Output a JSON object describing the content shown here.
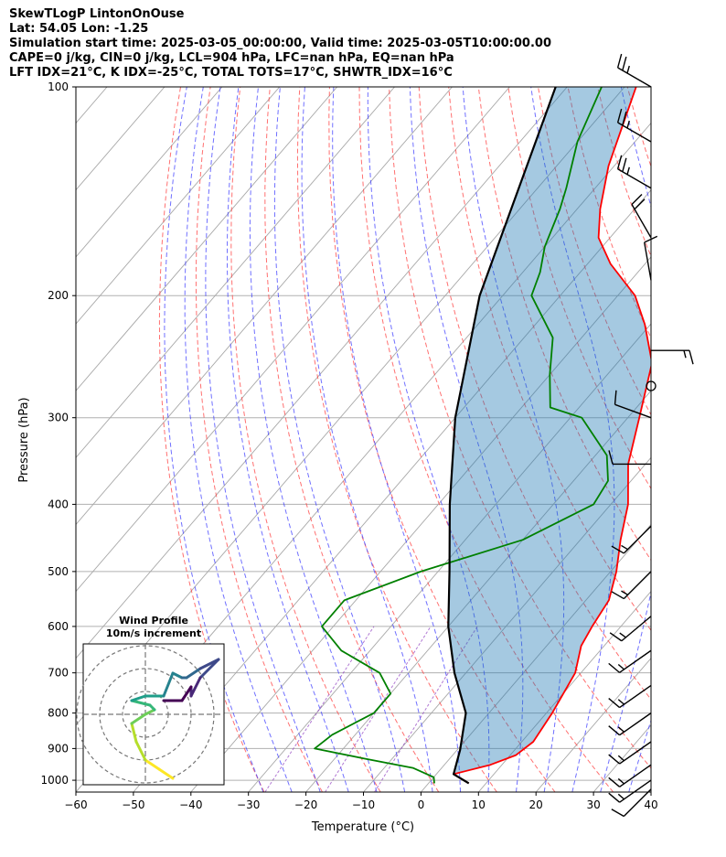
{
  "header": {
    "line1": "SkewTLogP LintonOnOuse",
    "line2": "Lat: 54.05   Lon: -1.25",
    "line3": "Simulation start time: 2025-03-05_00:00:00, Valid time: 2025-03-05T10:00:00.00",
    "line4": "CAPE=0 j/kg, CIN=0 j/kg, LCL=904 hPa, LFC=nan hPa, EQ=nan hPa",
    "line5": "LFT IDX=21°C, K IDX=-25°C, TOTAL TOTS=17°C, SHWTR_IDX=16°C"
  },
  "chart_data": {
    "type": "line",
    "subtype": "skew-T log-P",
    "xlabel": "Temperature (°C)",
    "ylabel": "Pressure (hPa)",
    "xlim": [
      -60,
      40
    ],
    "ylim": [
      1040,
      100
    ],
    "y_scale": "log",
    "grid": true,
    "x_ticks": [
      -60,
      -50,
      -40,
      -30,
      -20,
      -10,
      0,
      10,
      20,
      30,
      40
    ],
    "y_ticks": [
      1000,
      900,
      800,
      700,
      600,
      500,
      400,
      300,
      200,
      100
    ],
    "series": [
      {
        "name": "Temperature",
        "color": "#ff0000",
        "points": [
          [
            7,
            1010
          ],
          [
            3,
            980
          ],
          [
            8,
            950
          ],
          [
            11,
            920
          ],
          [
            12,
            880
          ],
          [
            11,
            800
          ],
          [
            9,
            700
          ],
          [
            6,
            640
          ],
          [
            5,
            600
          ],
          [
            4,
            550
          ],
          [
            1,
            500
          ],
          [
            -3,
            450
          ],
          [
            -7,
            400
          ],
          [
            -13,
            350
          ],
          [
            -18,
            300
          ],
          [
            -24,
            250
          ],
          [
            -31,
            220
          ],
          [
            -37,
            200
          ],
          [
            -46,
            180
          ],
          [
            -52,
            165
          ],
          [
            -56,
            150
          ],
          [
            -61,
            130
          ],
          [
            -68,
            100
          ]
        ]
      },
      {
        "name": "Dewpoint",
        "color": "#008000",
        "points": [
          [
            1,
            1010
          ],
          [
            0,
            990
          ],
          [
            -5,
            960
          ],
          [
            -15,
            930
          ],
          [
            -25,
            900
          ],
          [
            -24,
            860
          ],
          [
            -20,
            800
          ],
          [
            -20,
            750
          ],
          [
            -25,
            700
          ],
          [
            -35,
            650
          ],
          [
            -42,
            600
          ],
          [
            -42,
            550
          ],
          [
            -33,
            500
          ],
          [
            -20,
            450
          ],
          [
            -13,
            400
          ],
          [
            -14,
            370
          ],
          [
            -18,
            340
          ],
          [
            -28,
            300
          ],
          [
            -35,
            290
          ],
          [
            -40,
            260
          ],
          [
            -45,
            230
          ],
          [
            -55,
            200
          ],
          [
            -57,
            185
          ],
          [
            -60,
            170
          ],
          [
            -63,
            150
          ],
          [
            -65,
            140
          ],
          [
            -70,
            120
          ],
          [
            -74,
            100
          ]
        ]
      },
      {
        "name": "Parcel",
        "color": "#000000",
        "points": [
          [
            7,
            1010
          ],
          [
            3,
            980
          ],
          [
            0.5,
            904
          ],
          [
            -4,
            800
          ],
          [
            -12,
            700
          ],
          [
            -20,
            600
          ],
          [
            -28,
            500
          ],
          [
            -38,
            400
          ],
          [
            -50,
            300
          ],
          [
            -64,
            200
          ],
          [
            -82,
            100
          ]
        ]
      }
    ],
    "winds": [
      {
        "p": 100,
        "spd_kt": 25,
        "dir": 300
      },
      {
        "p": 120,
        "spd_kt": 25,
        "dir": 300
      },
      {
        "p": 140,
        "spd_kt": 25,
        "dir": 300
      },
      {
        "p": 165,
        "spd_kt": 20,
        "dir": 330
      },
      {
        "p": 190,
        "spd_kt": 10,
        "dir": 350
      },
      {
        "p": 240,
        "spd_kt": 15,
        "dir": 90
      },
      {
        "p": 270,
        "spd_kt": 0,
        "dir": 0
      },
      {
        "p": 300,
        "spd_kt": 10,
        "dir": 290
      },
      {
        "p": 350,
        "spd_kt": 10,
        "dir": 270
      },
      {
        "p": 430,
        "spd_kt": 15,
        "dir": 225
      },
      {
        "p": 500,
        "spd_kt": 15,
        "dir": 225
      },
      {
        "p": 580,
        "spd_kt": 15,
        "dir": 230
      },
      {
        "p": 650,
        "spd_kt": 15,
        "dir": 235
      },
      {
        "p": 730,
        "spd_kt": 15,
        "dir": 235
      },
      {
        "p": 800,
        "spd_kt": 15,
        "dir": 235
      },
      {
        "p": 880,
        "spd_kt": 15,
        "dir": 235
      },
      {
        "p": 950,
        "spd_kt": 15,
        "dir": 235
      },
      {
        "p": 1000,
        "spd_kt": 15,
        "dir": 235
      },
      {
        "p": 1030,
        "spd_kt": 10,
        "dir": 225
      }
    ],
    "inset": {
      "title": "Wind Profile",
      "subtitle": "10m/s increment",
      "rings": 3,
      "hodograph": [
        [
          3,
          -7
        ],
        [
          1.5,
          -6
        ],
        [
          0,
          -5
        ],
        [
          -1,
          -3
        ],
        [
          -1.5,
          -1
        ],
        [
          0,
          0
        ],
        [
          1,
          0.5
        ],
        [
          0.5,
          1
        ],
        [
          -1.5,
          1.5
        ],
        [
          0,
          2
        ],
        [
          2,
          2
        ],
        [
          3,
          4.5
        ],
        [
          4,
          4
        ],
        [
          4.5,
          4
        ],
        [
          6,
          5
        ],
        [
          8,
          6
        ],
        [
          6,
          4
        ],
        [
          5,
          2
        ],
        [
          5,
          3
        ],
        [
          4,
          1.5
        ],
        [
          2,
          1.5
        ]
      ]
    }
  }
}
